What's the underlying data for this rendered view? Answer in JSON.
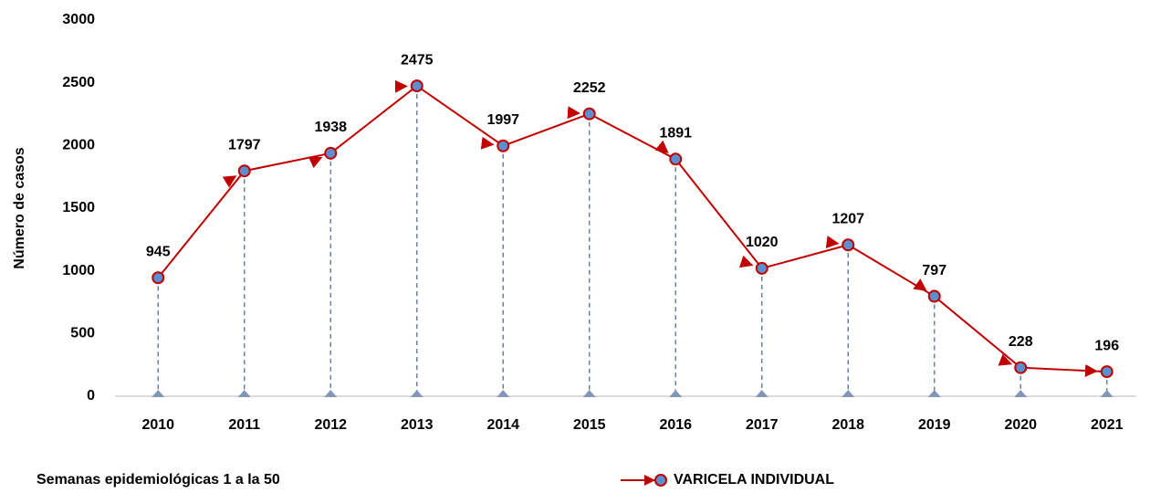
{
  "chart_data": {
    "type": "line",
    "y_label": "Número de casos",
    "annotation": "Semanas epidemiológicas 1 a la 50",
    "categories": [
      "2010",
      "2011",
      "2012",
      "2013",
      "2014",
      "2015",
      "2016",
      "2017",
      "2018",
      "2019",
      "2020",
      "2021"
    ],
    "series": [
      {
        "name": "VARICELA INDIVIDUAL",
        "color": "#c00000",
        "marker_color": "#5b8fd0",
        "values": [
          945,
          1797,
          1938,
          2475,
          1997,
          2252,
          1891,
          1020,
          1207,
          797,
          228,
          196
        ]
      }
    ],
    "ylim": [
      0,
      3000
    ],
    "yticks": [
      0,
      500,
      1000,
      1500,
      2000,
      2500,
      3000
    ],
    "grid": false,
    "drop_lines": true,
    "legend": "bottom"
  }
}
